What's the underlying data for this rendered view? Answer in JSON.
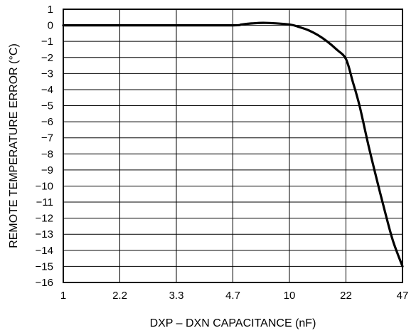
{
  "chart_data": {
    "type": "line",
    "title": "",
    "xlabel": "DXP – DXN CAPACITANCE (nF)",
    "ylabel": "REMOTE TEMPERATURE ERROR (°C)",
    "x_ticks": [
      "1",
      "2.2",
      "3.3",
      "4.7",
      "10",
      "22",
      "47"
    ],
    "ylim": [
      -16,
      1
    ],
    "y_ticks": [
      "1",
      "0",
      "−1",
      "−2",
      "−3",
      "−4",
      "−5",
      "−6",
      "−7",
      "−8",
      "−9",
      "−10",
      "−11",
      "−12",
      "−13",
      "−14",
      "−15",
      "−16"
    ],
    "grid": true,
    "series": [
      {
        "x": [
          1,
          2.2,
          3.3,
          4.7,
          5.5,
          6.5,
          7.8,
          10,
          12,
          14,
          16,
          18,
          20,
          22,
          25,
          28,
          32,
          36,
          40,
          43,
          47
        ],
        "y": [
          0,
          0,
          0,
          0,
          0.05,
          0.12,
          0.15,
          0.05,
          -0.1,
          -0.3,
          -0.6,
          -1.0,
          -1.5,
          -2.1,
          -3.5,
          -5.0,
          -7.5,
          -9.8,
          -12.0,
          -13.5,
          -15.0
        ]
      }
    ],
    "line_color": "#000000"
  }
}
